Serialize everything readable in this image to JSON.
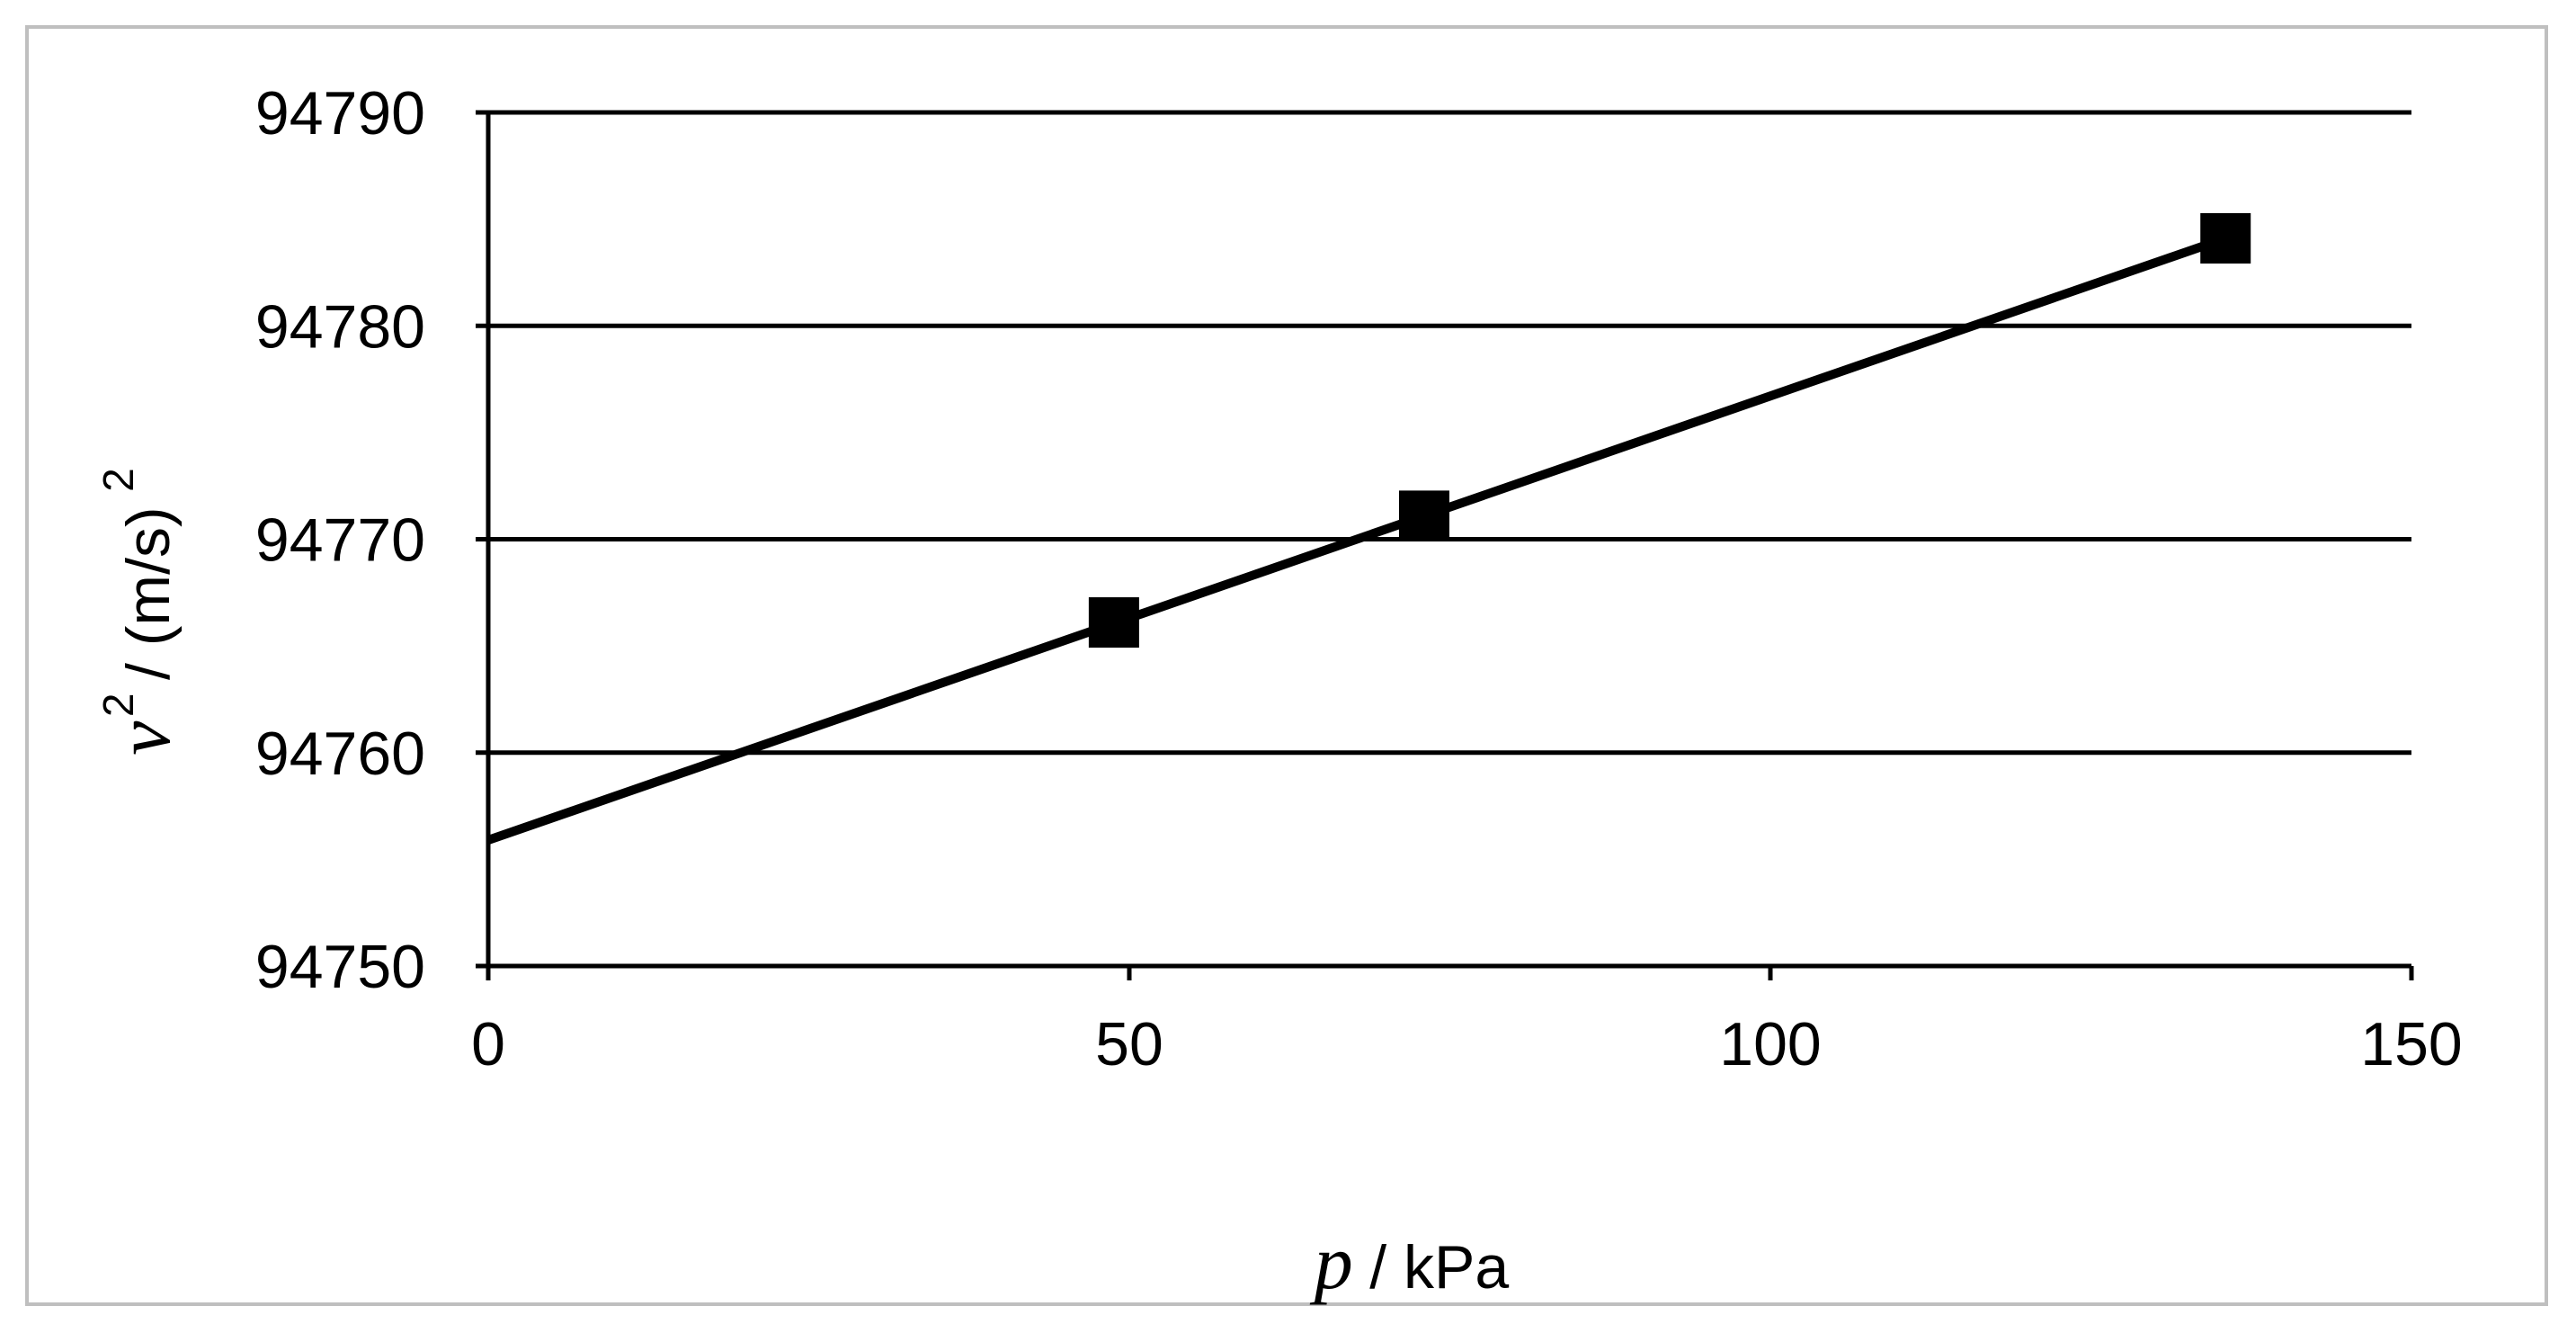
{
  "chart_data": {
    "type": "scatter",
    "x_ticks": [
      "0",
      "50",
      "100",
      "150"
    ],
    "y_ticks": [
      "94750",
      "94760",
      "94770",
      "94780",
      "94790"
    ],
    "xlim": [
      0,
      150
    ],
    "ylim": [
      94750,
      94790
    ],
    "grid": "horizontal",
    "marker": "square",
    "marker_color": "#000000",
    "line_color": "#000000",
    "frame_color": "#bfbfbf",
    "xlabel": {
      "symbol": "p",
      "unit": "/ kPa"
    },
    "ylabel": {
      "symbol": "v",
      "symbol_exponent": "2",
      "unit": "/ (m/s)",
      "unit_exponent": "2"
    },
    "series": [
      {
        "points": [
          {
            "x": 48.8,
            "y": 94766.1
          },
          {
            "x": 73.0,
            "y": 94771.1
          },
          {
            "x": 135.5,
            "y": 94784.1
          }
        ]
      }
    ],
    "trendline": {
      "type": "linear",
      "x_start": 0,
      "y_start": 94755.9,
      "x_end": 135.5,
      "y_end": 94784.1
    }
  }
}
